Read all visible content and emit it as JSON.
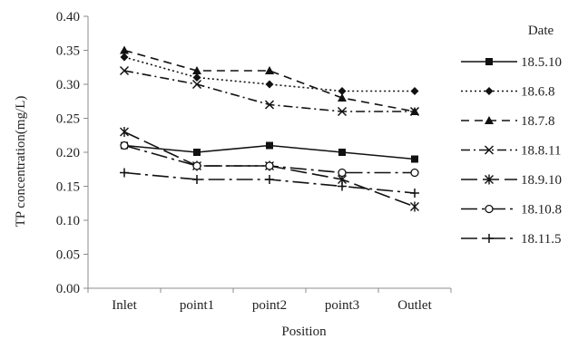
{
  "chart_data": {
    "type": "line",
    "title": "",
    "xlabel": "Position",
    "ylabel": "TP concentration(mg/L)",
    "categories": [
      "Inlet",
      "point1",
      "point2",
      "point3",
      "Outlet"
    ],
    "ylim": [
      0,
      0.4
    ],
    "yticks": [
      "0.00",
      "0.05",
      "0.10",
      "0.15",
      "0.20",
      "0.25",
      "0.30",
      "0.35",
      "0.40"
    ],
    "grid": false,
    "legend": {
      "title": "Date",
      "placement": "right"
    },
    "series": [
      {
        "name": "18.5.10",
        "values": [
          0.21,
          0.2,
          0.21,
          0.2,
          0.19
        ],
        "marker": "square",
        "dash": "solid"
      },
      {
        "name": "18.6.8",
        "values": [
          0.34,
          0.31,
          0.3,
          0.29,
          0.29
        ],
        "marker": "diamond",
        "dash": "dotted"
      },
      {
        "name": "18.7.8",
        "values": [
          0.35,
          0.32,
          0.32,
          0.28,
          0.26
        ],
        "marker": "triangle",
        "dash": "dashed"
      },
      {
        "name": "18.8.11",
        "values": [
          0.32,
          0.3,
          0.27,
          0.26,
          0.26
        ],
        "marker": "x",
        "dash": "dashdot"
      },
      {
        "name": "18.9.10",
        "values": [
          0.23,
          0.18,
          0.18,
          0.16,
          0.12
        ],
        "marker": "asterisk",
        "dash": "longdash"
      },
      {
        "name": "18.10.8",
        "values": [
          0.21,
          0.18,
          0.18,
          0.17,
          0.17
        ],
        "marker": "circle",
        "dash": "longdashdot"
      },
      {
        "name": "18.11.5",
        "values": [
          0.17,
          0.16,
          0.16,
          0.15,
          0.14
        ],
        "marker": "plus",
        "dash": "longdashdot"
      }
    ]
  }
}
